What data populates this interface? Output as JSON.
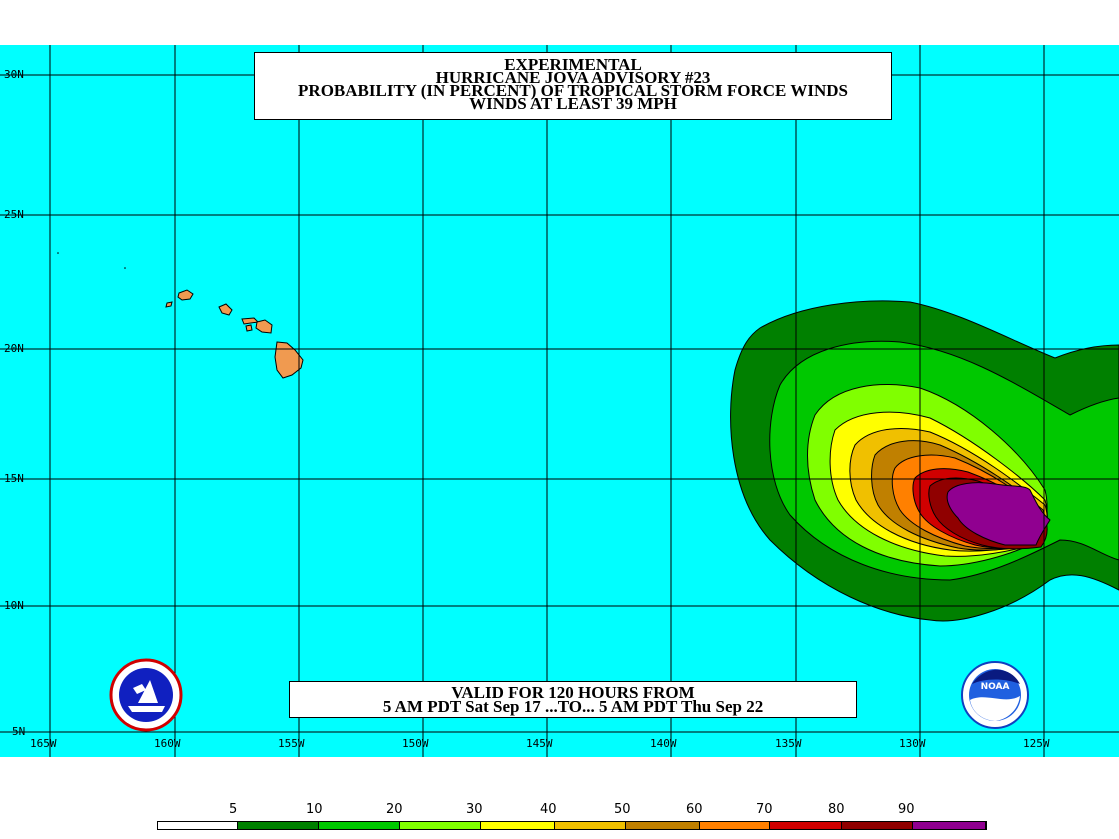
{
  "title": {
    "line1": "EXPERIMENTAL",
    "line2": "HURRICANE JOVA ADVISORY #23",
    "line3": "PROBABILITY (IN PERCENT) OF TROPICAL STORM FORCE WINDS",
    "line4": "WINDS AT LEAST 39 MPH"
  },
  "valid": {
    "line1": "VALID FOR 120 HOURS FROM",
    "line2": "5 AM PDT Sat Sep 17 ...TO... 5 AM PDT Thu Sep 22"
  },
  "lat_labels": [
    "30N",
    "25N",
    "20N",
    "15N",
    "10N",
    "5N"
  ],
  "lon_labels": [
    "165W",
    "160W",
    "155W",
    "150W",
    "145W",
    "140W",
    "135W",
    "130W",
    "125W"
  ],
  "scale": {
    "labels": [
      "5",
      "10",
      "20",
      "30",
      "40",
      "50",
      "60",
      "70",
      "80",
      "90"
    ],
    "colors": [
      "#ffffff",
      "#008000",
      "#00c800",
      "#80ff00",
      "#ffff00",
      "#f0c000",
      "#c08000",
      "#ff8000",
      "#d00000",
      "#900000",
      "#900090"
    ]
  },
  "colors": {
    "ocean": "#00ffff",
    "land": "#f09a50",
    "grid": "#000000"
  },
  "logos": {
    "left": "nws-logo",
    "right": "noaa-logo",
    "right_text": "NOAA"
  }
}
